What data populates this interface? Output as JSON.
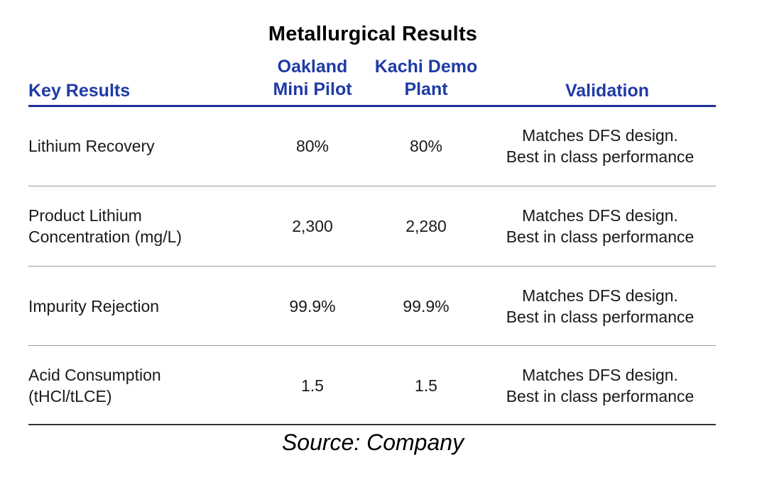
{
  "title": "Metallurgical Results",
  "headers": {
    "key": "Key Results",
    "oakland_line1": "Oakland",
    "oakland_line2": "Mini Pilot",
    "kachi_line1": "Kachi Demo",
    "kachi_line2": "Plant",
    "validation": "Validation"
  },
  "rows": [
    {
      "label_line1": "Lithium Recovery",
      "label_line2": "",
      "oakland": "80%",
      "kachi": "80%",
      "validation_line1": "Matches DFS design.",
      "validation_line2": "Best in class performance"
    },
    {
      "label_line1": "Product Lithium",
      "label_line2": "Concentration (mg/L)",
      "oakland": "2,300",
      "kachi": "2,280",
      "validation_line1": "Matches DFS design.",
      "validation_line2": "Best in class performance"
    },
    {
      "label_line1": "Impurity Rejection",
      "label_line2": "",
      "oakland": "99.9%",
      "kachi": "99.9%",
      "validation_line1": "Matches DFS design.",
      "validation_line2": "Best in class performance"
    },
    {
      "label_line1": "Acid Consumption",
      "label_line2": "(tHCl/tLCE)",
      "oakland": "1.5",
      "kachi": "1.5",
      "validation_line1": "Matches DFS design.",
      "validation_line2": "Best in class performance"
    }
  ],
  "source": "Source: Company",
  "colors": {
    "header_text": "#1f3aa6",
    "header_rule": "#1f2e99"
  }
}
